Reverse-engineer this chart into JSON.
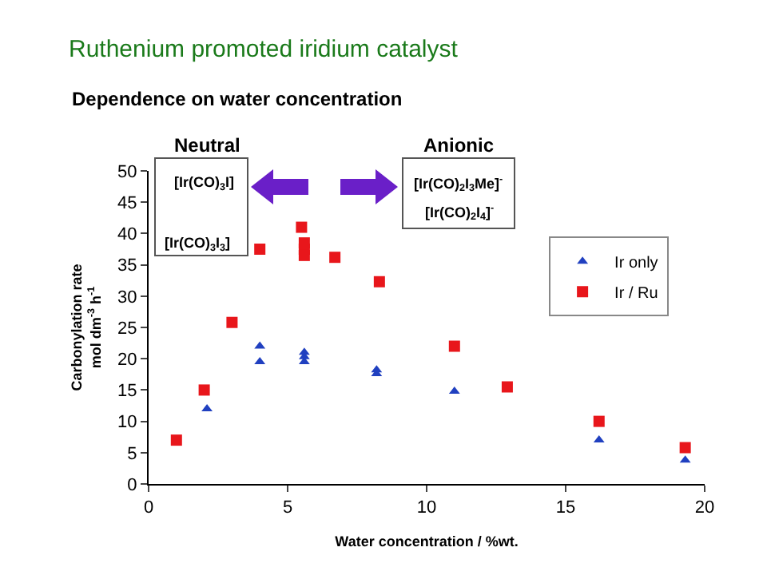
{
  "chart_data": {
    "type": "scatter",
    "title": "Ruthenium promoted iridium catalyst",
    "subtitle": "Dependence on water concentration",
    "xlabel": "Water concentration / %wt.",
    "ylabel": "Carbonylation rate\nmol dm$^{-3}$ h$^{-1}$",
    "annotations": [
      "Neutral",
      "Anionic",
      "[Ir(CO)$_{3}$I]",
      "[Ir(CO)$_{3}$I$_{3}$]",
      "[Ir(CO)$_{2}$I$_{3}$Me]$^{-}$",
      "[Ir(CO)$_{2}$I$_{4}$]$^{-}$"
    ],
    "series": [
      {
        "name": "Ir only",
        "color": "#2040c0",
        "marker": "triangle",
        "x": [
          2.1,
          4,
          4,
          5.6,
          5.6,
          5.6,
          8.2,
          8.2,
          11,
          16.2,
          19.3
        ],
        "values": [
          12,
          22,
          19.5,
          21,
          20.3,
          19.5,
          18.2,
          17.6,
          14.8,
          7,
          3.8
        ]
      },
      {
        "name": "Ir / Ru",
        "color": "#e8161b",
        "marker": "square",
        "x": [
          1,
          2,
          3,
          4,
          5.5,
          5.6,
          5.6,
          5.6,
          6.7,
          8.3,
          11,
          12.9,
          16.2,
          19.3
        ],
        "values": [
          7,
          15,
          25.8,
          37.5,
          41,
          38.5,
          37.5,
          36.5,
          36.2,
          32.3,
          22,
          15.5,
          10,
          5.8
        ]
      }
    ],
    "xlim": [
      0,
      20
    ],
    "xticks": [
      0,
      5,
      10,
      15,
      20
    ],
    "ylim": [
      0,
      50
    ],
    "yticks": [
      0,
      5,
      10,
      15,
      20,
      25,
      30,
      35,
      40,
      45,
      50
    ],
    "grid": false,
    "legend": "right"
  }
}
